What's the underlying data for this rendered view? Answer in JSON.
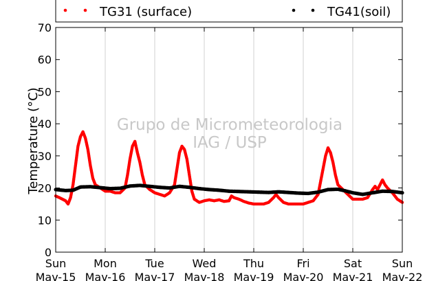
{
  "chart_data": {
    "type": "scatter",
    "title": "",
    "xlabel": "",
    "ylabel": "Temperature (°C)",
    "ylim": [
      0,
      70
    ],
    "yticks": [
      0,
      10,
      20,
      30,
      40,
      50,
      60,
      70
    ],
    "xlim": [
      0,
      7
    ],
    "grid": "vertical",
    "legend_position": "top",
    "watermark": [
      "Grupo de Micrometeorologia",
      "IAG / USP"
    ],
    "x_ticks": [
      {
        "day": "Sun",
        "date": "Mav-15"
      },
      {
        "day": "Mon",
        "date": "Mav-16"
      },
      {
        "day": "Tue",
        "date": "Mav-17"
      },
      {
        "day": "Wed",
        "date": "Mav-18"
      },
      {
        "day": "Thu",
        "date": "Mav-19"
      },
      {
        "day": "Fri",
        "date": "Mav-20"
      },
      {
        "day": "Sat",
        "date": "Mav-21"
      },
      {
        "day": "Sun",
        "date": "Mav-22"
      }
    ],
    "series": [
      {
        "name": "TG31 (surface)",
        "color": "#ff0000",
        "points": [
          [
            0.0,
            17.5
          ],
          [
            0.1,
            16.8
          ],
          [
            0.2,
            16.0
          ],
          [
            0.25,
            15.0
          ],
          [
            0.3,
            17.0
          ],
          [
            0.35,
            21.0
          ],
          [
            0.4,
            27.0
          ],
          [
            0.45,
            33.0
          ],
          [
            0.5,
            36.0
          ],
          [
            0.55,
            37.5
          ],
          [
            0.6,
            35.5
          ],
          [
            0.65,
            32.0
          ],
          [
            0.7,
            27.0
          ],
          [
            0.75,
            23.0
          ],
          [
            0.8,
            21.0
          ],
          [
            0.9,
            20.0
          ],
          [
            1.0,
            19.0
          ],
          [
            1.1,
            19.0
          ],
          [
            1.2,
            18.5
          ],
          [
            1.3,
            18.5
          ],
          [
            1.4,
            20.0
          ],
          [
            1.45,
            24.0
          ],
          [
            1.5,
            29.0
          ],
          [
            1.55,
            33.0
          ],
          [
            1.6,
            34.5
          ],
          [
            1.65,
            31.0
          ],
          [
            1.7,
            28.0
          ],
          [
            1.75,
            24.0
          ],
          [
            1.8,
            21.0
          ],
          [
            1.9,
            19.5
          ],
          [
            2.0,
            18.5
          ],
          [
            2.1,
            18.0
          ],
          [
            2.2,
            17.5
          ],
          [
            2.3,
            18.5
          ],
          [
            2.4,
            21.0
          ],
          [
            2.45,
            26.0
          ],
          [
            2.5,
            31.0
          ],
          [
            2.55,
            33.0
          ],
          [
            2.6,
            32.0
          ],
          [
            2.65,
            29.0
          ],
          [
            2.7,
            24.0
          ],
          [
            2.75,
            19.0
          ],
          [
            2.8,
            16.5
          ],
          [
            2.9,
            15.5
          ],
          [
            3.0,
            16.0
          ],
          [
            3.1,
            16.3
          ],
          [
            3.2,
            16.0
          ],
          [
            3.3,
            16.3
          ],
          [
            3.4,
            15.8
          ],
          [
            3.5,
            16.0
          ],
          [
            3.55,
            17.5
          ],
          [
            3.6,
            17.0
          ],
          [
            3.7,
            16.5
          ],
          [
            3.8,
            15.8
          ],
          [
            3.9,
            15.3
          ],
          [
            4.0,
            15.0
          ],
          [
            4.1,
            15.0
          ],
          [
            4.2,
            15.0
          ],
          [
            4.3,
            15.5
          ],
          [
            4.4,
            17.0
          ],
          [
            4.45,
            18.0
          ],
          [
            4.5,
            17.0
          ],
          [
            4.6,
            15.5
          ],
          [
            4.7,
            15.0
          ],
          [
            4.8,
            15.0
          ],
          [
            4.9,
            15.0
          ],
          [
            5.0,
            15.0
          ],
          [
            5.1,
            15.5
          ],
          [
            5.2,
            16.0
          ],
          [
            5.3,
            18.0
          ],
          [
            5.35,
            22.0
          ],
          [
            5.4,
            26.0
          ],
          [
            5.45,
            30.0
          ],
          [
            5.5,
            32.5
          ],
          [
            5.55,
            31.0
          ],
          [
            5.6,
            28.0
          ],
          [
            5.65,
            24.0
          ],
          [
            5.7,
            21.0
          ],
          [
            5.8,
            19.5
          ],
          [
            5.9,
            18.0
          ],
          [
            6.0,
            16.5
          ],
          [
            6.1,
            16.5
          ],
          [
            6.2,
            16.5
          ],
          [
            6.3,
            17.0
          ],
          [
            6.4,
            19.5
          ],
          [
            6.45,
            20.5
          ],
          [
            6.5,
            19.5
          ],
          [
            6.55,
            21.0
          ],
          [
            6.6,
            22.5
          ],
          [
            6.65,
            21.0
          ],
          [
            6.7,
            20.0
          ],
          [
            6.8,
            18.5
          ],
          [
            6.9,
            16.5
          ],
          [
            7.0,
            15.5
          ]
        ]
      },
      {
        "name": "TG41(soil)",
        "color": "#000000",
        "points": [
          [
            0.0,
            19.5
          ],
          [
            0.2,
            19.2
          ],
          [
            0.35,
            19.3
          ],
          [
            0.5,
            20.3
          ],
          [
            0.7,
            20.4
          ],
          [
            0.9,
            20.1
          ],
          [
            1.1,
            19.8
          ],
          [
            1.3,
            19.9
          ],
          [
            1.5,
            20.6
          ],
          [
            1.7,
            20.8
          ],
          [
            1.9,
            20.5
          ],
          [
            2.1,
            20.2
          ],
          [
            2.3,
            20.0
          ],
          [
            2.5,
            20.5
          ],
          [
            2.7,
            20.2
          ],
          [
            2.9,
            19.8
          ],
          [
            3.1,
            19.5
          ],
          [
            3.3,
            19.3
          ],
          [
            3.5,
            19.0
          ],
          [
            3.7,
            18.9
          ],
          [
            3.9,
            18.8
          ],
          [
            4.1,
            18.7
          ],
          [
            4.3,
            18.6
          ],
          [
            4.5,
            18.8
          ],
          [
            4.7,
            18.6
          ],
          [
            4.9,
            18.4
          ],
          [
            5.1,
            18.3
          ],
          [
            5.3,
            18.7
          ],
          [
            5.5,
            19.5
          ],
          [
            5.7,
            19.6
          ],
          [
            5.85,
            19.1
          ],
          [
            6.0,
            18.5
          ],
          [
            6.2,
            18.0
          ],
          [
            6.4,
            18.5
          ],
          [
            6.6,
            19.0
          ],
          [
            6.8,
            18.9
          ],
          [
            7.0,
            18.5
          ]
        ]
      }
    ]
  }
}
